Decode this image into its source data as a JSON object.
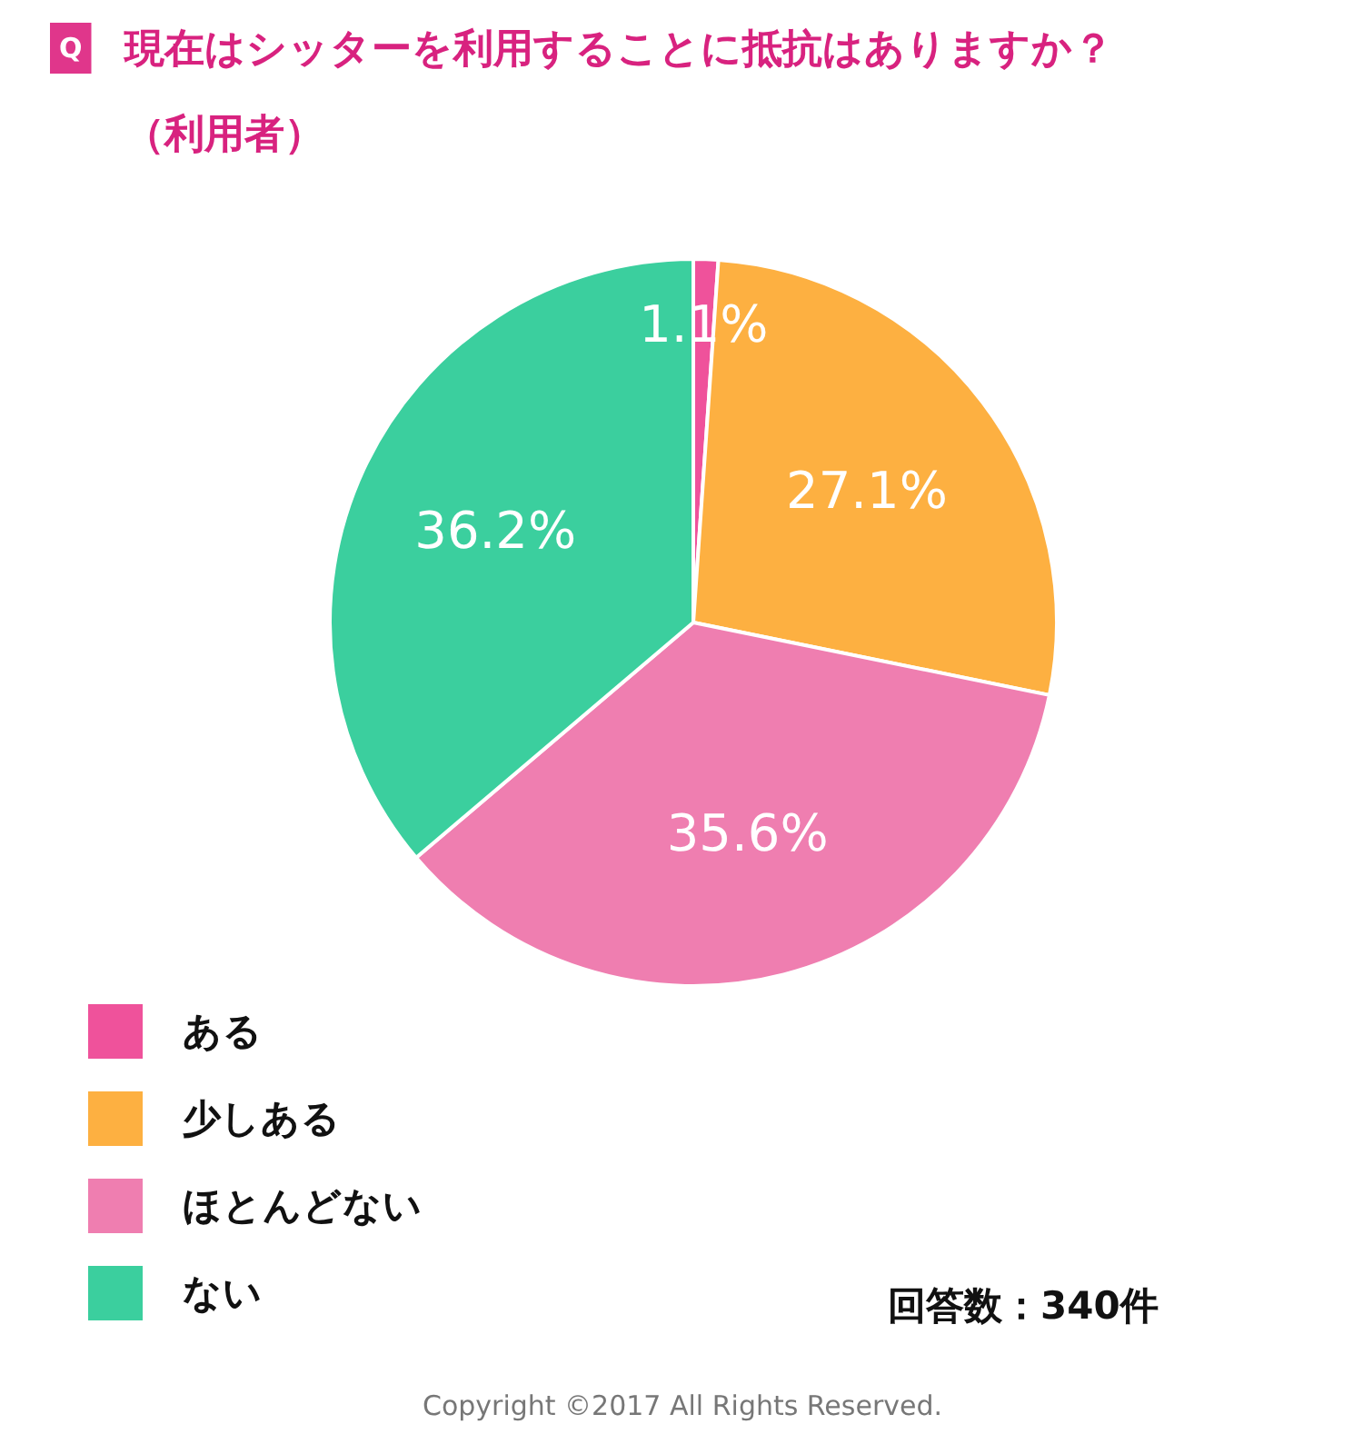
{
  "chart_data": {
    "type": "pie",
    "title": "現在はシッターを利用することに抵抗はありますか？",
    "subtitle": "（利用者）",
    "categories": [
      "ある",
      "少しある",
      "ほとんどない",
      "ない"
    ],
    "values": [
      1.1,
      27.1,
      35.6,
      36.2
    ],
    "colors": [
      "#ef529b",
      "#fdb041",
      "#ef7eb0",
      "#3bcf9e"
    ],
    "value_labels": [
      "1.1%",
      "27.1%",
      "35.6%",
      "36.2%"
    ],
    "legend": "bottom",
    "annotations": [
      "Q",
      "回答数：340件",
      "Copyright ©2017 All Rights Reserved."
    ]
  }
}
